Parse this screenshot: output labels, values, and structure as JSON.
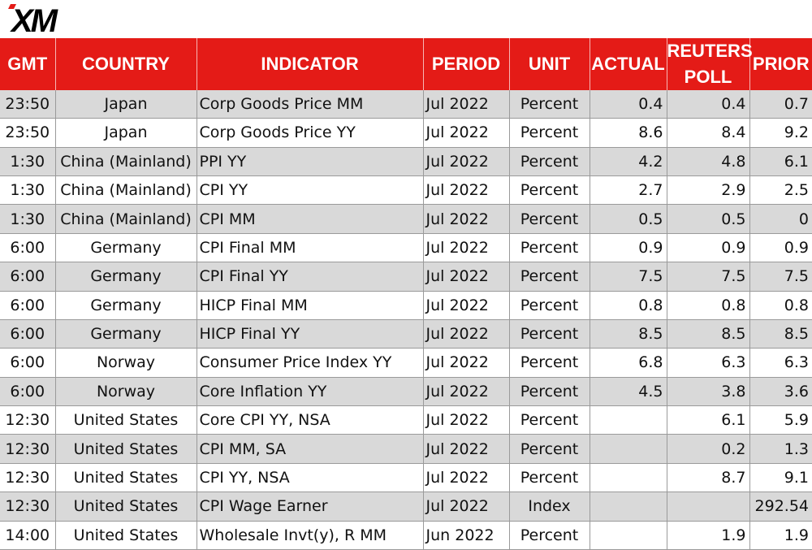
{
  "brand": {
    "logo_text": "XM",
    "accent_color": "#e41b17",
    "logo_color": "#000000"
  },
  "headers": {
    "gmt": "GMT",
    "country": "COUNTRY",
    "indicator": "INDICATOR",
    "period": "PERIOD",
    "unit": "UNIT",
    "actual": "ACTUAL",
    "poll_line1": "REUTERS",
    "poll_line2": "POLL",
    "prior": "PRIOR"
  },
  "rows": [
    {
      "gmt": "23:50",
      "country": "Japan",
      "indicator": "Corp Goods Price MM",
      "period": "Jul 2022",
      "unit": "Percent",
      "actual": "0.4",
      "poll": "0.4",
      "prior": "0.7"
    },
    {
      "gmt": "23:50",
      "country": "Japan",
      "indicator": "Corp Goods Price YY",
      "period": "Jul 2022",
      "unit": "Percent",
      "actual": "8.6",
      "poll": "8.4",
      "prior": "9.2"
    },
    {
      "gmt": "1:30",
      "country": "China (Mainland)",
      "indicator": "PPI YY",
      "period": "Jul 2022",
      "unit": "Percent",
      "actual": "4.2",
      "poll": "4.8",
      "prior": "6.1"
    },
    {
      "gmt": "1:30",
      "country": "China (Mainland)",
      "indicator": "CPI YY",
      "period": "Jul 2022",
      "unit": "Percent",
      "actual": "2.7",
      "poll": "2.9",
      "prior": "2.5"
    },
    {
      "gmt": "1:30",
      "country": "China (Mainland)",
      "indicator": "CPI MM",
      "period": "Jul 2022",
      "unit": "Percent",
      "actual": "0.5",
      "poll": "0.5",
      "prior": "0"
    },
    {
      "gmt": "6:00",
      "country": "Germany",
      "indicator": "CPI Final MM",
      "period": "Jul 2022",
      "unit": "Percent",
      "actual": "0.9",
      "poll": "0.9",
      "prior": "0.9"
    },
    {
      "gmt": "6:00",
      "country": "Germany",
      "indicator": "CPI Final YY",
      "period": "Jul 2022",
      "unit": "Percent",
      "actual": "7.5",
      "poll": "7.5",
      "prior": "7.5"
    },
    {
      "gmt": "6:00",
      "country": "Germany",
      "indicator": "HICP Final MM",
      "period": "Jul 2022",
      "unit": "Percent",
      "actual": "0.8",
      "poll": "0.8",
      "prior": "0.8"
    },
    {
      "gmt": "6:00",
      "country": "Germany",
      "indicator": "HICP Final YY",
      "period": "Jul 2022",
      "unit": "Percent",
      "actual": "8.5",
      "poll": "8.5",
      "prior": "8.5"
    },
    {
      "gmt": "6:00",
      "country": "Norway",
      "indicator": "Consumer Price Index YY",
      "period": "Jul 2022",
      "unit": "Percent",
      "actual": "6.8",
      "poll": "6.3",
      "prior": "6.3"
    },
    {
      "gmt": "6:00",
      "country": "Norway",
      "indicator": "Core Inflation YY",
      "period": "Jul 2022",
      "unit": "Percent",
      "actual": "4.5",
      "poll": "3.8",
      "prior": "3.6"
    },
    {
      "gmt": "12:30",
      "country": "United States",
      "indicator": "Core CPI YY, NSA",
      "period": "Jul 2022",
      "unit": "Percent",
      "actual": "",
      "poll": "6.1",
      "prior": "5.9"
    },
    {
      "gmt": "12:30",
      "country": "United States",
      "indicator": "CPI MM, SA",
      "period": "Jul 2022",
      "unit": "Percent",
      "actual": "",
      "poll": "0.2",
      "prior": "1.3"
    },
    {
      "gmt": "12:30",
      "country": "United States",
      "indicator": "CPI YY, NSA",
      "period": "Jul 2022",
      "unit": "Percent",
      "actual": "",
      "poll": "8.7",
      "prior": "9.1"
    },
    {
      "gmt": "12:30",
      "country": "United States",
      "indicator": "CPI Wage Earner",
      "period": "Jul 2022",
      "unit": "Index",
      "actual": "",
      "poll": "",
      "prior": "292.54"
    },
    {
      "gmt": "14:00",
      "country": "United States",
      "indicator": "Wholesale Invt(y), R MM",
      "period": "Jun 2022",
      "unit": "Percent",
      "actual": "",
      "poll": "1.9",
      "prior": "1.9"
    }
  ]
}
